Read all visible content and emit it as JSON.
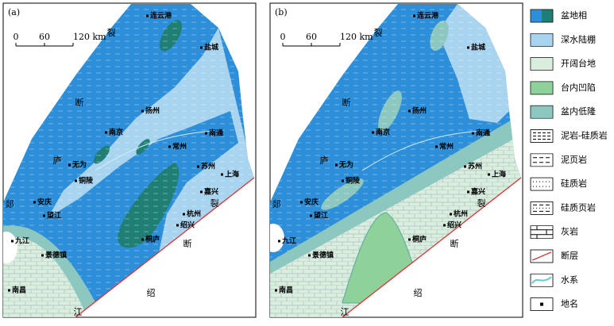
{
  "panels": [
    {
      "label": "(a)",
      "scale": [
        "0",
        "60",
        "120 km"
      ],
      "places": [
        "连云港",
        "盐城",
        "扬州",
        "南京",
        "南通",
        "常州",
        "苏州",
        "上海",
        "无为",
        "铜陵",
        "安庆",
        "望江",
        "嘉兴",
        "杭州",
        "绍兴",
        "桐庐",
        "九江",
        "景德镇",
        "南昌"
      ],
      "fault_labels": [
        "裂",
        "断",
        "庐",
        "郯",
        "裂",
        "断",
        "绍",
        "江"
      ]
    },
    {
      "label": "(b)",
      "scale": [
        "0",
        "60",
        "120 km"
      ],
      "places": [
        "连云港",
        "盐城",
        "扬州",
        "南京",
        "南通",
        "常州",
        "苏州",
        "上海",
        "无为",
        "铜陵",
        "安庆",
        "望江",
        "嘉兴",
        "杭州",
        "绍兴",
        "桐庐",
        "九江",
        "景德镇",
        "南昌"
      ],
      "fault_labels": [
        "裂",
        "断",
        "庐",
        "郯",
        "裂",
        "断",
        "绍",
        "江"
      ]
    }
  ],
  "legend": [
    "盆地相",
    "深水陆棚",
    "开阔台地",
    "台内凹陷",
    "盆内低隆",
    "泥岩-硅质岩",
    "泥页岩",
    "硅质岩",
    "硅质页岩",
    "灰岩",
    "断层",
    "水系",
    "地名"
  ]
}
